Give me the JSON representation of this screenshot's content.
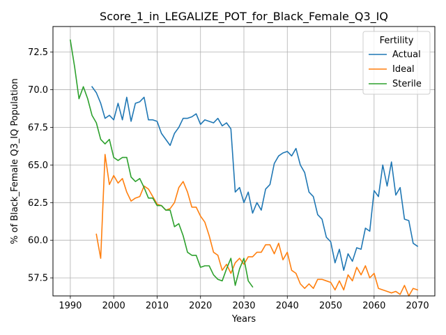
{
  "chart_data": {
    "type": "line",
    "title": "Score_1_in_LEGALIZE_POT_for_Black_Female_Q3_IQ",
    "xlabel": "Years",
    "ylabel": "% of Black_Female Q3_IQ Population",
    "xlim": [
      1986,
      2074
    ],
    "ylim": [
      56.3,
      74.2
    ],
    "xticks": [
      1990,
      2000,
      2010,
      2020,
      2030,
      2040,
      2050,
      2060,
      2070
    ],
    "yticks": [
      57.5,
      60.0,
      62.5,
      65.0,
      67.5,
      70.0,
      72.5
    ],
    "ytick_labels": [
      "57.5",
      "60.0",
      "62.5",
      "65.0",
      "67.5",
      "70.0",
      "72.5"
    ],
    "grid": true,
    "legend": {
      "title": "Fertility",
      "position": "top-right"
    },
    "series": [
      {
        "name": "Actual",
        "color": "#1f77b4",
        "x": [
          1995,
          1996,
          1997,
          1998,
          1999,
          2000,
          2001,
          2002,
          2003,
          2004,
          2005,
          2006,
          2007,
          2008,
          2009,
          2010,
          2011,
          2012,
          2013,
          2014,
          2015,
          2016,
          2017,
          2018,
          2019,
          2020,
          2021,
          2022,
          2023,
          2024,
          2025,
          2026,
          2027,
          2028,
          2029,
          2030,
          2031,
          2032,
          2033,
          2034,
          2035,
          2036,
          2037,
          2038,
          2039,
          2040,
          2041,
          2042,
          2043,
          2044,
          2045,
          2046,
          2047,
          2048,
          2049,
          2050,
          2051,
          2052,
          2053,
          2054,
          2055,
          2056,
          2057,
          2058,
          2059,
          2060,
          2061,
          2062,
          2063,
          2064,
          2065,
          2066,
          2067,
          2068,
          2069,
          2070
        ],
        "values": [
          70.2,
          69.8,
          69.1,
          68.1,
          68.3,
          68.0,
          69.1,
          68.0,
          69.5,
          67.9,
          69.1,
          69.2,
          69.5,
          68.0,
          68.0,
          67.9,
          67.1,
          66.7,
          66.3,
          67.1,
          67.5,
          68.1,
          68.1,
          68.2,
          68.4,
          67.7,
          68.0,
          67.9,
          67.8,
          68.1,
          67.6,
          67.8,
          67.4,
          63.2,
          63.5,
          62.5,
          63.2,
          61.8,
          62.5,
          62.0,
          63.4,
          63.7,
          65.1,
          65.6,
          65.8,
          65.9,
          65.6,
          66.1,
          65.0,
          64.5,
          63.2,
          62.9,
          61.7,
          61.4,
          60.2,
          59.9,
          58.5,
          59.4,
          58.0,
          59.1,
          58.6,
          59.5,
          59.4,
          60.8,
          60.6,
          63.3,
          62.9,
          65.0,
          63.6,
          65.2,
          63.0,
          63.5,
          61.4,
          61.3,
          59.8,
          59.6
        ]
      },
      {
        "name": "Ideal",
        "color": "#ff7f0e",
        "x": [
          1996,
          1997,
          1998,
          1999,
          2000,
          2001,
          2002,
          2003,
          2004,
          2005,
          2006,
          2007,
          2008,
          2009,
          2010,
          2011,
          2012,
          2013,
          2014,
          2015,
          2016,
          2017,
          2018,
          2019,
          2020,
          2021,
          2022,
          2023,
          2024,
          2025,
          2026,
          2027,
          2028,
          2029,
          2030,
          2031,
          2032,
          2033,
          2034,
          2035,
          2036,
          2037,
          2038,
          2039,
          2040,
          2041,
          2042,
          2043,
          2044,
          2045,
          2046,
          2047,
          2048,
          2049,
          2050,
          2051,
          2052,
          2053,
          2054,
          2055,
          2056,
          2057,
          2058,
          2059,
          2060,
          2061,
          2062,
          2063,
          2064,
          2065,
          2066,
          2067,
          2068,
          2069,
          2070
        ],
        "values": [
          60.4,
          58.8,
          65.7,
          63.7,
          64.3,
          63.8,
          64.1,
          63.2,
          62.6,
          62.8,
          62.9,
          63.6,
          63.4,
          62.9,
          62.4,
          62.3,
          62.0,
          62.1,
          62.5,
          63.5,
          63.9,
          63.2,
          62.2,
          62.2,
          61.6,
          61.2,
          60.3,
          59.2,
          59.0,
          58.0,
          58.4,
          57.8,
          58.5,
          58.8,
          58.4,
          58.9,
          58.9,
          59.2,
          59.2,
          59.7,
          59.7,
          59.1,
          59.8,
          58.7,
          59.2,
          58.0,
          57.8,
          57.1,
          56.8,
          57.1,
          56.8,
          57.4,
          57.4,
          57.3,
          57.2,
          56.7,
          57.3,
          56.7,
          57.7,
          57.3,
          58.2,
          57.7,
          58.3,
          57.5,
          57.8,
          56.8,
          56.7,
          56.6,
          56.5,
          56.6,
          56.4,
          57.0,
          56.3,
          56.8,
          56.7
        ]
      },
      {
        "name": "Sterile",
        "color": "#2ca02c",
        "x": [
          1990,
          1991,
          1992,
          1993,
          1994,
          1995,
          1996,
          1997,
          1998,
          1999,
          2000,
          2001,
          2002,
          2003,
          2004,
          2005,
          2006,
          2007,
          2008,
          2009,
          2010,
          2011,
          2012,
          2013,
          2014,
          2015,
          2016,
          2017,
          2018,
          2019,
          2020,
          2021,
          2022,
          2023,
          2024,
          2025,
          2026,
          2027,
          2028,
          2029,
          2030,
          2031,
          2032
        ],
        "values": [
          73.3,
          71.5,
          69.4,
          70.2,
          69.4,
          68.3,
          67.8,
          66.7,
          66.4,
          66.7,
          65.5,
          65.3,
          65.5,
          65.5,
          64.2,
          63.9,
          64.1,
          63.5,
          62.8,
          62.8,
          62.3,
          62.3,
          62.0,
          62.0,
          60.9,
          61.1,
          60.3,
          59.2,
          59.0,
          59.0,
          58.2,
          58.3,
          58.3,
          57.7,
          57.4,
          57.3,
          58.1,
          58.8,
          57.0,
          58.1,
          58.8,
          57.3,
          56.9
        ]
      }
    ]
  }
}
